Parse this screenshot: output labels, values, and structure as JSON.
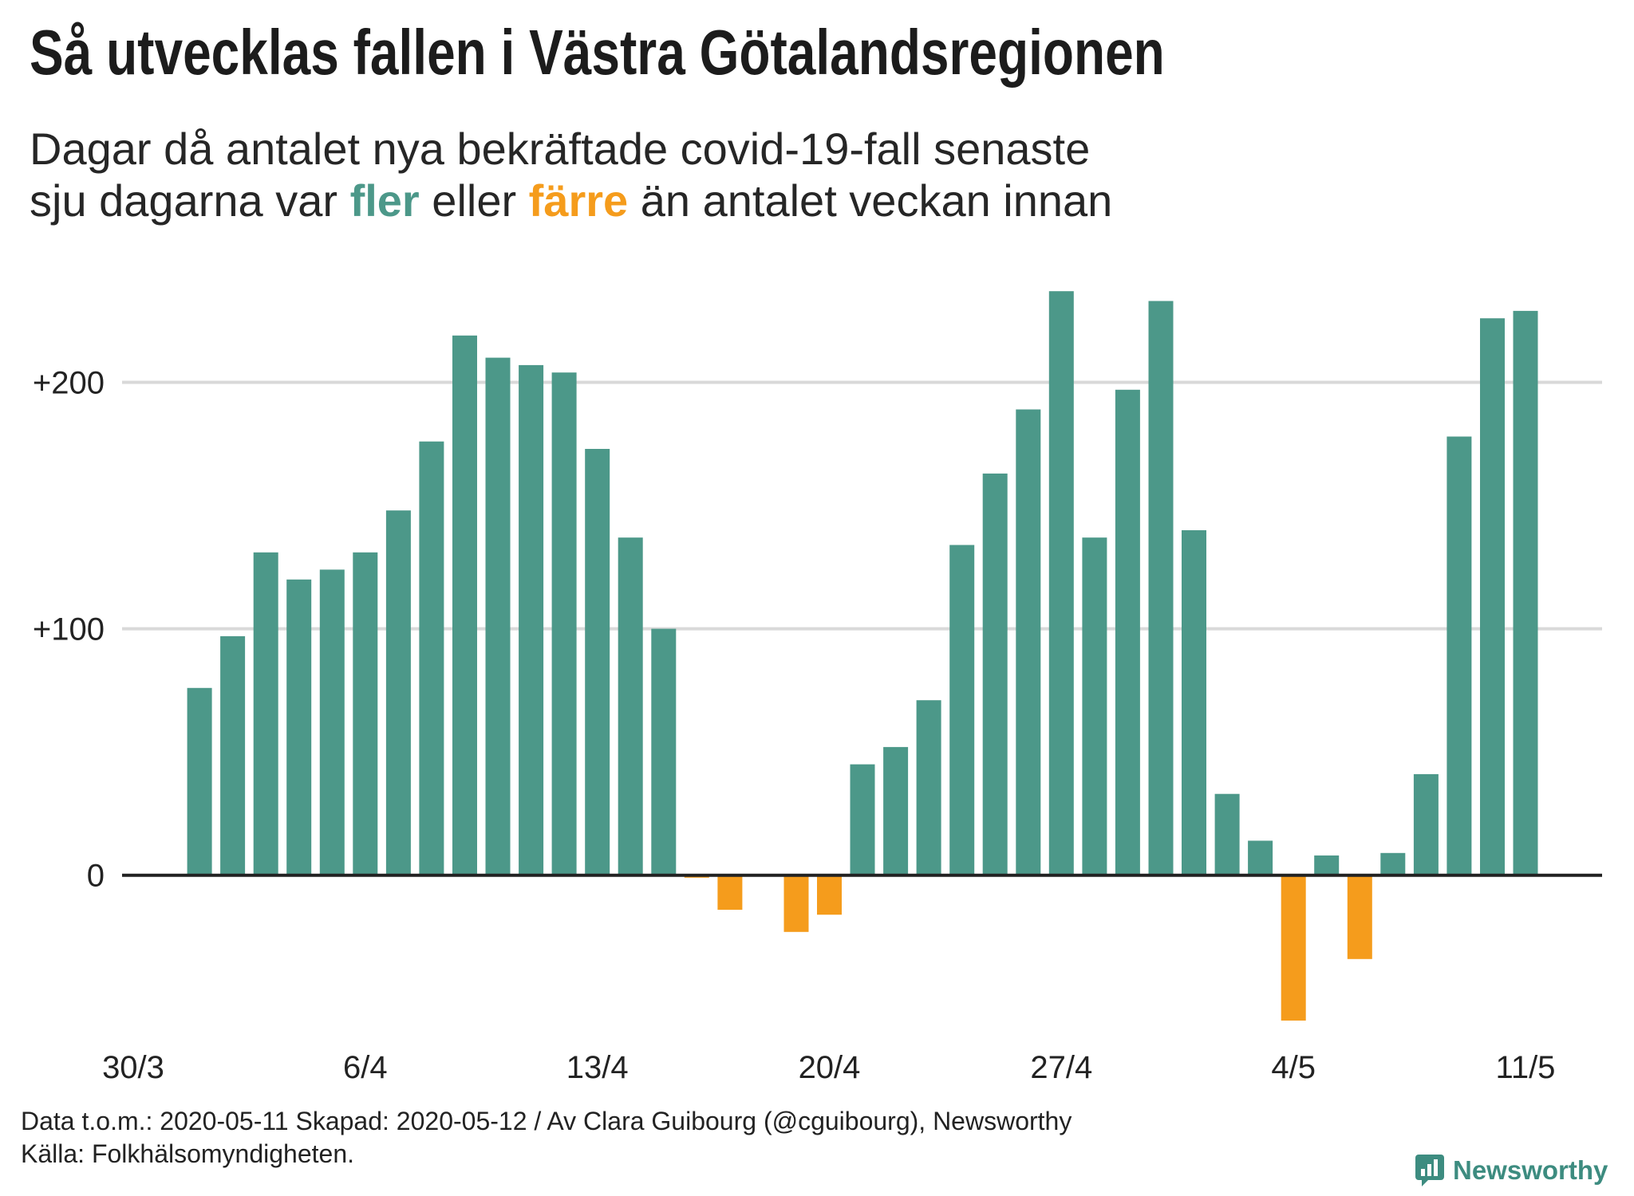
{
  "chart_data": {
    "type": "bar",
    "title": "Så utvecklas fallen i Västra Götalandsregionen",
    "subtitle": {
      "line1": "Dagar då antalet nya bekräftade covid-19-fall senaste",
      "line2_start": "sju dagarna var ",
      "more_term": "fler",
      "between": " eller ",
      "fewer_term": "färre",
      "line2_end": " än antalet veckan innan"
    },
    "categories": [
      "30/3",
      "31/3",
      "1/4",
      "2/4",
      "3/4",
      "4/4",
      "5/4",
      "6/4",
      "7/4",
      "8/4",
      "9/4",
      "10/4",
      "11/4",
      "12/4",
      "13/4",
      "14/4",
      "15/4",
      "16/4",
      "17/4",
      "18/4",
      "19/4",
      "20/4",
      "21/4",
      "22/4",
      "23/4",
      "24/4",
      "25/4",
      "26/4",
      "27/4",
      "28/4",
      "29/4",
      "30/4",
      "1/5",
      "2/5",
      "3/5",
      "4/5",
      "5/5",
      "6/5",
      "7/5",
      "8/5",
      "9/5",
      "10/5",
      "11/5"
    ],
    "values": [
      null,
      null,
      76,
      97,
      131,
      120,
      124,
      131,
      148,
      176,
      219,
      210,
      207,
      204,
      173,
      137,
      100,
      -1,
      -14,
      0,
      -23,
      -16,
      45,
      52,
      71,
      134,
      163,
      189,
      237,
      137,
      197,
      233,
      140,
      33,
      14,
      -59,
      8,
      -34,
      9,
      41,
      178,
      226,
      229
    ],
    "x_tick_labels": [
      "30/3",
      "6/4",
      "13/4",
      "20/4",
      "27/4",
      "4/5",
      "11/5"
    ],
    "y_ticks": [
      0,
      100,
      200
    ],
    "y_tick_labels": [
      "0",
      "+100",
      "+200"
    ],
    "ylim": [
      -70,
      250
    ],
    "grid": true,
    "colors": {
      "more": "#4c9889",
      "fewer": "#f59c1c"
    }
  },
  "footer": {
    "data_line": "Data t.o.m.: 2020-05-11 Skapad: 2020-05-12 / Av Clara Guibourg (@cguibourg), Newsworthy",
    "source_line": "Källa: Folkhälsomyndigheten."
  },
  "logo": {
    "text": "Newsworthy",
    "icon": "newsworthy-chart-bubble-icon",
    "color": "#3d8c80"
  }
}
